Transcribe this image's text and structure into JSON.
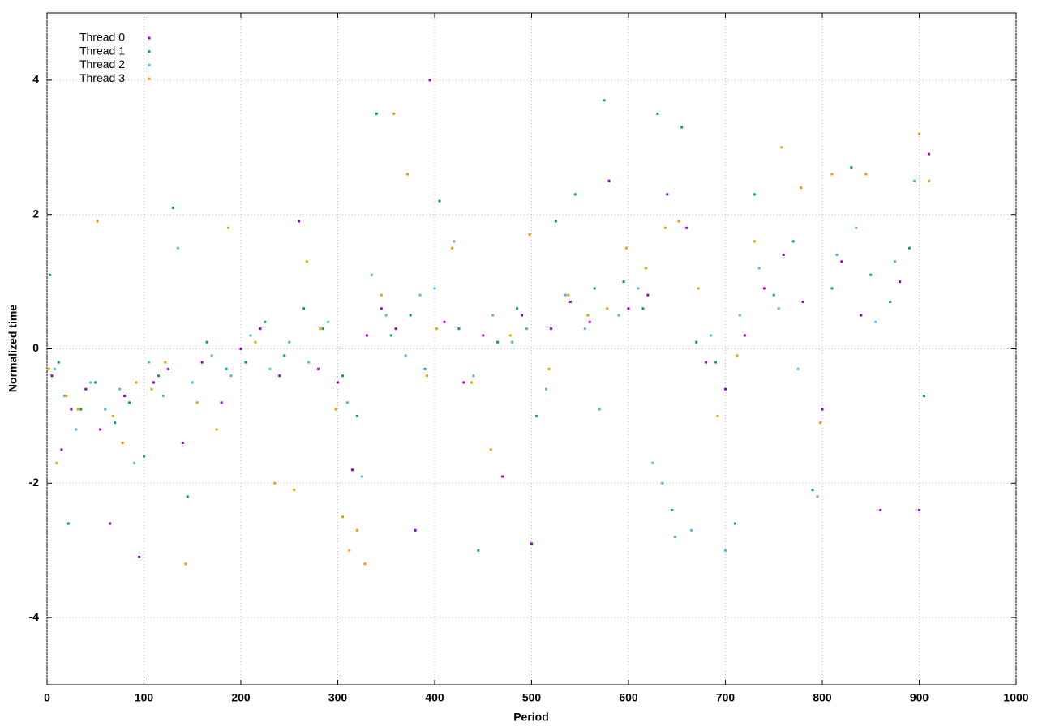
{
  "chart_data": {
    "type": "scatter",
    "x_label": "Period",
    "y_label": "Normalized time",
    "xlim": [
      0,
      1000
    ],
    "ylim": [
      -5,
      5
    ],
    "xticks": [
      0,
      100,
      200,
      300,
      400,
      500,
      600,
      700,
      800,
      900,
      1000
    ],
    "yticks": [
      -4,
      -2,
      0,
      2,
      4
    ],
    "grid": true,
    "legend": "top-left",
    "series": [
      {
        "name": "Thread 0",
        "color": "#9400d3",
        "x": [
          5,
          15,
          25,
          40,
          55,
          65,
          80,
          95,
          110,
          125,
          140,
          160,
          180,
          200,
          220,
          240,
          260,
          280,
          300,
          315,
          330,
          345,
          360,
          380,
          395,
          410,
          430,
          450,
          470,
          490,
          500,
          520,
          540,
          560,
          580,
          600,
          620,
          640,
          660,
          680,
          700,
          720,
          740,
          760,
          780,
          800,
          820,
          840,
          860,
          880,
          900,
          910
        ],
        "values": [
          -0.4,
          -1.5,
          -0.9,
          -0.6,
          -1.2,
          -2.6,
          -0.7,
          -3.1,
          -0.5,
          -0.3,
          -1.4,
          -0.2,
          -0.8,
          0,
          0.3,
          -0.4,
          1.9,
          -0.3,
          -0.5,
          -1.8,
          0.2,
          0.6,
          0.3,
          -2.7,
          4.0,
          0.4,
          -0.5,
          0.2,
          -1.9,
          0.5,
          -2.9,
          0.3,
          0.7,
          0.4,
          2.5,
          0.6,
          0.8,
          2.3,
          1.8,
          -0.2,
          -0.6,
          0.2,
          0.9,
          1.4,
          0.7,
          -0.9,
          1.3,
          0.5,
          -2.4,
          1.0,
          -2.4,
          2.9
        ]
      },
      {
        "name": "Thread 1",
        "color": "#009e73",
        "x": [
          3,
          12,
          22,
          35,
          50,
          70,
          85,
          100,
          115,
          130,
          145,
          165,
          185,
          205,
          225,
          245,
          265,
          285,
          305,
          320,
          340,
          355,
          375,
          390,
          405,
          425,
          445,
          465,
          485,
          505,
          525,
          545,
          565,
          575,
          595,
          615,
          630,
          645,
          655,
          670,
          690,
          710,
          730,
          750,
          770,
          790,
          810,
          830,
          850,
          870,
          890,
          905
        ],
        "values": [
          1.1,
          -0.2,
          -2.6,
          -0.9,
          -0.5,
          -1.1,
          -0.8,
          -1.6,
          -0.4,
          2.1,
          -2.2,
          0.1,
          -0.3,
          -0.2,
          0.4,
          -0.1,
          0.6,
          0.3,
          -0.4,
          -1.0,
          3.5,
          0.2,
          0.5,
          -0.3,
          2.2,
          0.3,
          -3.0,
          0.1,
          0.6,
          -1.0,
          1.9,
          2.3,
          0.9,
          3.7,
          1.0,
          0.6,
          3.5,
          -2.4,
          3.3,
          0.1,
          -0.2,
          -2.6,
          2.3,
          0.8,
          1.6,
          -2.1,
          0.9,
          2.7,
          1.1,
          0.7,
          1.5,
          -0.7
        ]
      },
      {
        "name": "Thread 2",
        "color": "#56b4e9",
        "x": [
          8,
          18,
          30,
          45,
          60,
          75,
          90,
          105,
          120,
          135,
          150,
          170,
          190,
          210,
          230,
          250,
          270,
          290,
          310,
          325,
          335,
          350,
          370,
          385,
          400,
          420,
          440,
          460,
          480,
          495,
          515,
          535,
          555,
          570,
          590,
          610,
          625,
          635,
          648,
          665,
          685,
          700,
          715,
          735,
          755,
          775,
          795,
          815,
          835,
          855,
          875,
          895
        ],
        "values": [
          -0.3,
          -0.7,
          -1.2,
          -0.5,
          -0.9,
          -0.6,
          -1.7,
          -0.2,
          -0.7,
          1.5,
          -0.5,
          -0.1,
          -0.4,
          0.2,
          -0.3,
          0.1,
          -0.2,
          0.4,
          -0.8,
          -1.9,
          1.1,
          0.5,
          -0.1,
          0.8,
          0.9,
          1.6,
          -0.4,
          0.5,
          0.1,
          0.3,
          -0.6,
          0.8,
          0.3,
          -0.9,
          0.5,
          0.9,
          -1.7,
          -2.0,
          -2.8,
          -2.7,
          0.2,
          -3.0,
          0.5,
          1.2,
          0.6,
          -0.3,
          -2.2,
          1.4,
          1.8,
          0.4,
          1.3,
          2.5
        ]
      },
      {
        "name": "Thread 3",
        "color": "#e69f00",
        "x": [
          2,
          10,
          20,
          32,
          52,
          68,
          78,
          92,
          108,
          122,
          143,
          155,
          175,
          187,
          215,
          235,
          255,
          268,
          282,
          298,
          305,
          312,
          320,
          328,
          345,
          358,
          372,
          392,
          402,
          418,
          438,
          458,
          478,
          498,
          518,
          538,
          558,
          578,
          598,
          618,
          638,
          652,
          672,
          692,
          712,
          730,
          758,
          778,
          798,
          810,
          845,
          900,
          910
        ],
        "values": [
          -0.3,
          -1.7,
          -0.7,
          -0.9,
          1.9,
          -1.0,
          -1.4,
          -0.5,
          -0.6,
          -0.2,
          -3.2,
          -0.8,
          -1.2,
          1.8,
          0.1,
          -2.0,
          -2.1,
          1.3,
          0.3,
          -0.9,
          -2.5,
          -3.0,
          -2.7,
          -3.2,
          0.8,
          3.5,
          2.6,
          -0.4,
          0.3,
          1.5,
          -0.5,
          -1.5,
          0.2,
          1.7,
          -0.3,
          0.8,
          0.5,
          0.6,
          1.5,
          1.2,
          1.8,
          1.9,
          0.9,
          -1.0,
          -0.1,
          1.6,
          3.0,
          2.4,
          -1.1,
          2.6,
          2.6,
          3.2,
          2.5
        ]
      }
    ]
  }
}
